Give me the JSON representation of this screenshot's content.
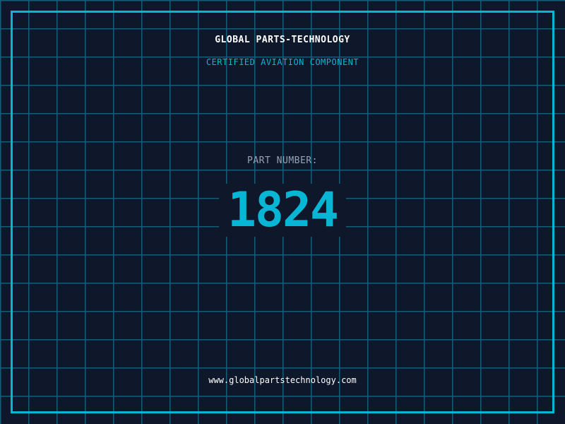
{
  "header": {
    "company": "GLOBAL PARTS-TECHNOLOGY",
    "subtitle": "CERTIFIED AVIATION COMPONENT"
  },
  "part": {
    "label": "PART NUMBER:",
    "number": "1824"
  },
  "footer": {
    "url": "www.globalpartstechnology.com"
  },
  "colors": {
    "background": "#0f172a",
    "accent": "#06b6d4",
    "grid": "#155e75",
    "label": "#94a3b8"
  }
}
